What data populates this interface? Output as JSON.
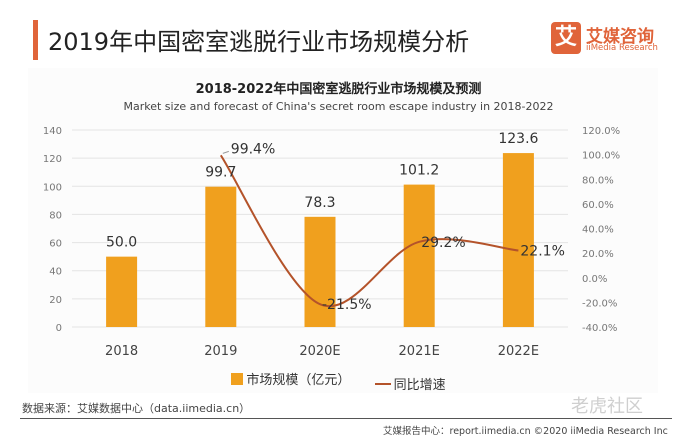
{
  "header": {
    "title": "2019年中国密室逃脱行业市场规模分析",
    "logo": {
      "mark": "艾",
      "name_cn": "艾媒咨询",
      "name_en": "iiMedia Research"
    }
  },
  "colors": {
    "accent": "#e0643a",
    "bar": "#f0a01e",
    "line": "#b4532a",
    "grid": "#e4e4e4"
  },
  "chart_data": {
    "type": "bar",
    "title": "2018-2022年中国密室逃脱行业市场规模及预测",
    "subtitle": "Market size and forecast of China's secret room escape industry in 2018-2022",
    "categories": [
      "2018",
      "2019",
      "2020E",
      "2021E",
      "2022E"
    ],
    "series": [
      {
        "name": "市场规模（亿元）",
        "type": "bar",
        "axis": "left",
        "values": [
          50.0,
          99.7,
          78.3,
          101.2,
          123.6
        ],
        "labels": [
          "50.0",
          "99.7",
          "78.3",
          "101.2",
          "123.6"
        ]
      },
      {
        "name": "同比增速",
        "type": "line",
        "axis": "right",
        "categories": [
          "2019",
          "2020E",
          "2021E",
          "2022E"
        ],
        "values": [
          99.4,
          -21.5,
          29.2,
          22.1
        ],
        "labels": [
          "99.4%",
          "-21.5%",
          "29.2%",
          "22.1%"
        ]
      }
    ],
    "left_axis": {
      "range": [
        0,
        140
      ],
      "ticks": [
        0,
        20,
        40,
        60,
        80,
        100,
        120,
        140
      ],
      "tick_labels": [
        "0",
        "20",
        "40",
        "60",
        "80",
        "100",
        "120",
        "140"
      ]
    },
    "right_axis": {
      "range": [
        -40,
        120
      ],
      "ticks": [
        -40,
        -20,
        0,
        20,
        40,
        60,
        80,
        100,
        120
      ],
      "tick_labels": [
        "-40.0%",
        "-20.0%",
        "0.0%",
        "20.0%",
        "40.0%",
        "60.0%",
        "80.0%",
        "100.0%",
        "120.0%"
      ]
    },
    "grid": true,
    "legend_position": "bottom-center"
  },
  "legend": {
    "bar_label": "市场规模（亿元）",
    "line_label": "同比增速"
  },
  "source": "数据来源：艾媒数据中心（data.iimedia.cn）",
  "footer": "艾媒报告中心：report.iimedia.cn  ©2020  iiMedia Research Inc",
  "watermark": "老虎社区"
}
